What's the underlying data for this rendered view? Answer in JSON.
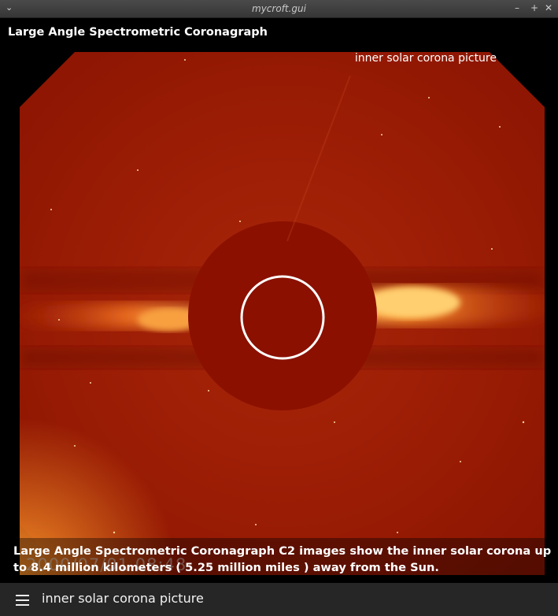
{
  "window": {
    "title": "mycroft.gui",
    "menu_icon": "chevron-down-icon",
    "controls": [
      "minimize-icon",
      "maximize-icon",
      "close-icon"
    ]
  },
  "header": {
    "title": "Large Angle Spectrometric Coronagraph"
  },
  "image": {
    "caption": "inner solar corona picture",
    "timestamp": "2000/07/01 08:48",
    "description": "Large Angle Spectrometric Coronagraph C2 images show the inner solar corona up to 8.4 million kilometers ( 5.25 million miles ) away from the Sun."
  },
  "bottom_bar": {
    "menu_icon": "hamburger-menu-icon",
    "query": "inner solar corona picture"
  },
  "colors": {
    "corona_background": "#9c1b03",
    "occulter_disk": "#8b1000",
    "streamer_glow": "#ffb84d"
  }
}
